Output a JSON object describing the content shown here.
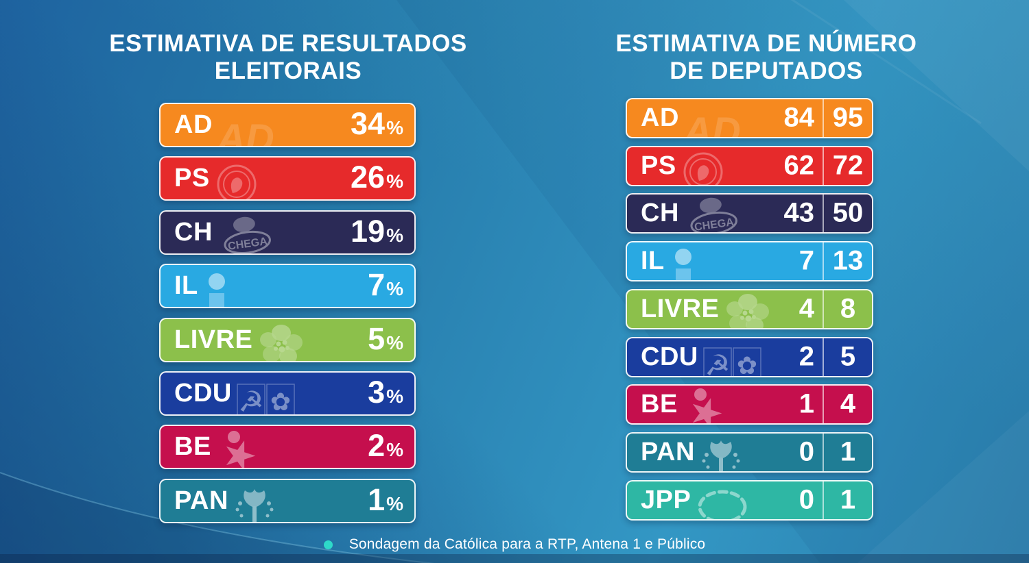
{
  "left_panel": {
    "title_line1": "ESTIMATIVA DE RESULTADOS",
    "title_line2": "ELEITORAIS",
    "rows": [
      {
        "party": "AD",
        "value": "34",
        "unit": "%",
        "color": "#F6891F",
        "logo": "ad-logo"
      },
      {
        "party": "PS",
        "value": "26",
        "unit": "%",
        "color": "#E62A2B",
        "logo": "ps-logo"
      },
      {
        "party": "CH",
        "value": "19",
        "unit": "%",
        "color": "#2B2A56",
        "logo": "chega-logo"
      },
      {
        "party": "IL",
        "value": "7",
        "unit": "%",
        "color": "#29A9E2",
        "logo": "il-logo"
      },
      {
        "party": "LIVRE",
        "value": "5",
        "unit": "%",
        "color": "#8CC04B",
        "logo": "livre-logo"
      },
      {
        "party": "CDU",
        "value": "3",
        "unit": "%",
        "color": "#1A3D9E",
        "logo": "cdu-logo"
      },
      {
        "party": "BE",
        "value": "2",
        "unit": "%",
        "color": "#C50F4D",
        "logo": "be-logo"
      },
      {
        "party": "PAN",
        "value": "1",
        "unit": "%",
        "color": "#1F7D95",
        "logo": "pan-logo"
      }
    ]
  },
  "right_panel": {
    "title_line1": "ESTIMATIVA DE NÚMERO",
    "title_line2": "DE DEPUTADOS",
    "rows": [
      {
        "party": "AD",
        "min": "84",
        "max": "95",
        "color": "#F6891F",
        "logo": "ad-logo"
      },
      {
        "party": "PS",
        "min": "62",
        "max": "72",
        "color": "#E62A2B",
        "logo": "ps-logo"
      },
      {
        "party": "CH",
        "min": "43",
        "max": "50",
        "color": "#2B2A56",
        "logo": "chega-logo"
      },
      {
        "party": "IL",
        "min": "7",
        "max": "13",
        "color": "#29A9E2",
        "logo": "il-logo"
      },
      {
        "party": "LIVRE",
        "min": "4",
        "max": "8",
        "color": "#8CC04B",
        "logo": "livre-logo"
      },
      {
        "party": "CDU",
        "min": "2",
        "max": "5",
        "color": "#1A3D9E",
        "logo": "cdu-logo"
      },
      {
        "party": "BE",
        "min": "1",
        "max": "4",
        "color": "#C50F4D",
        "logo": "be-logo"
      },
      {
        "party": "PAN",
        "min": "0",
        "max": "1",
        "color": "#1F7D95",
        "logo": "pan-logo"
      },
      {
        "party": "JPP",
        "min": "0",
        "max": "1",
        "color": "#2EB7A4",
        "logo": "jpp-logo"
      }
    ]
  },
  "footer": {
    "bullet_color": "#2ED9C9",
    "source": "Sondagem da Católica para a RTP, Antena 1 e Público"
  },
  "chart_data": [
    {
      "type": "bar",
      "title": "ESTIMATIVA DE RESULTADOS ELEITORAIS",
      "categories": [
        "AD",
        "PS",
        "CH",
        "IL",
        "LIVRE",
        "CDU",
        "BE",
        "PAN"
      ],
      "values": [
        34,
        26,
        19,
        7,
        5,
        3,
        2,
        1
      ],
      "unit": "%",
      "colors": [
        "#F6891F",
        "#E62A2B",
        "#2B2A56",
        "#29A9E2",
        "#8CC04B",
        "#1A3D9E",
        "#C50F4D",
        "#1F7D95"
      ],
      "xlabel": "",
      "ylabel": "",
      "legend": "none",
      "grid": false
    },
    {
      "type": "table",
      "title": "ESTIMATIVA DE NÚMERO DE DEPUTADOS",
      "categories": [
        "AD",
        "PS",
        "CH",
        "IL",
        "LIVRE",
        "CDU",
        "BE",
        "PAN",
        "JPP"
      ],
      "series": [
        {
          "name": "min",
          "values": [
            84,
            62,
            43,
            7,
            4,
            2,
            1,
            0,
            0
          ]
        },
        {
          "name": "max",
          "values": [
            95,
            72,
            50,
            13,
            8,
            5,
            4,
            1,
            1
          ]
        }
      ],
      "colors": [
        "#F6891F",
        "#E62A2B",
        "#2B2A56",
        "#29A9E2",
        "#8CC04B",
        "#1A3D9E",
        "#C50F4D",
        "#1F7D95",
        "#2EB7A4"
      ],
      "legend": "none",
      "grid": false
    }
  ]
}
